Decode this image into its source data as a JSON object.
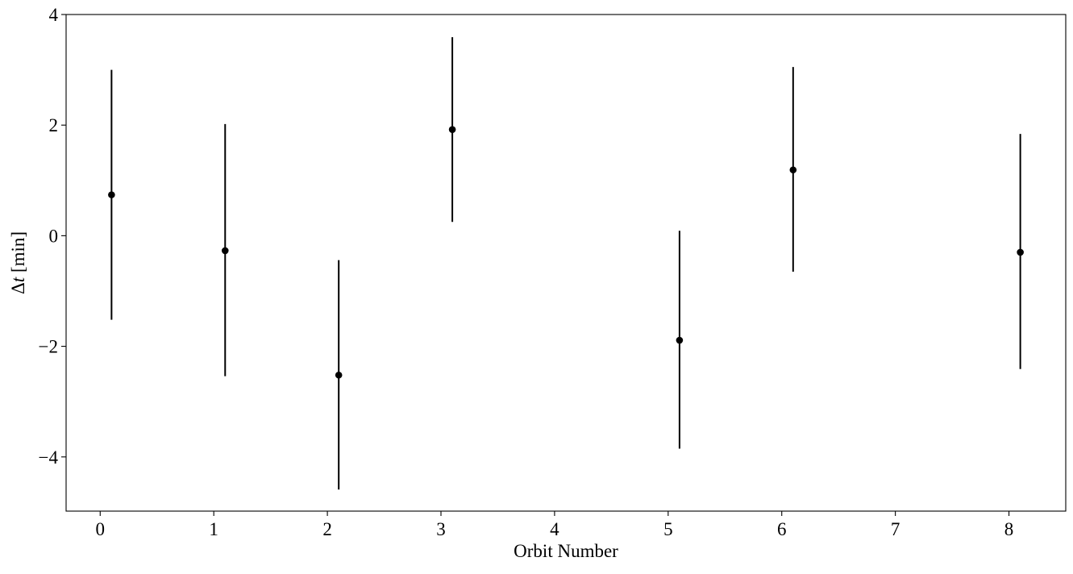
{
  "chart_data": {
    "type": "scatter",
    "title": "",
    "xlabel": "Orbit Number",
    "ylabel_symbol": "Δ",
    "ylabel_var": "t",
    "ylabel_unit": " [min]",
    "xlim": [
      -0.3,
      8.5
    ],
    "ylim": [
      -4.98,
      4.0
    ],
    "x_ticks": [
      0,
      1,
      2,
      3,
      4,
      5,
      6,
      7,
      8
    ],
    "x_tick_labels": [
      "0",
      "1",
      "2",
      "3",
      "4",
      "5",
      "6",
      "7",
      "8"
    ],
    "y_ticks": [
      -4,
      -2,
      0,
      2,
      4
    ],
    "y_tick_labels": [
      "−4",
      "−2",
      "0",
      "2",
      "4"
    ],
    "grid": false,
    "series": [
      {
        "marker": "circle",
        "color": "#000000",
        "x": [
          0.1,
          1.1,
          2.1,
          3.1,
          5.1,
          6.1,
          8.1
        ],
        "y": [
          0.74,
          -0.27,
          -2.52,
          1.92,
          -1.89,
          1.19,
          -0.3
        ],
        "y_err_low": [
          2.26,
          2.27,
          2.07,
          1.67,
          1.96,
          1.84,
          2.11
        ],
        "y_err_high": [
          2.26,
          2.29,
          2.08,
          1.67,
          1.98,
          1.86,
          2.14
        ]
      }
    ]
  }
}
